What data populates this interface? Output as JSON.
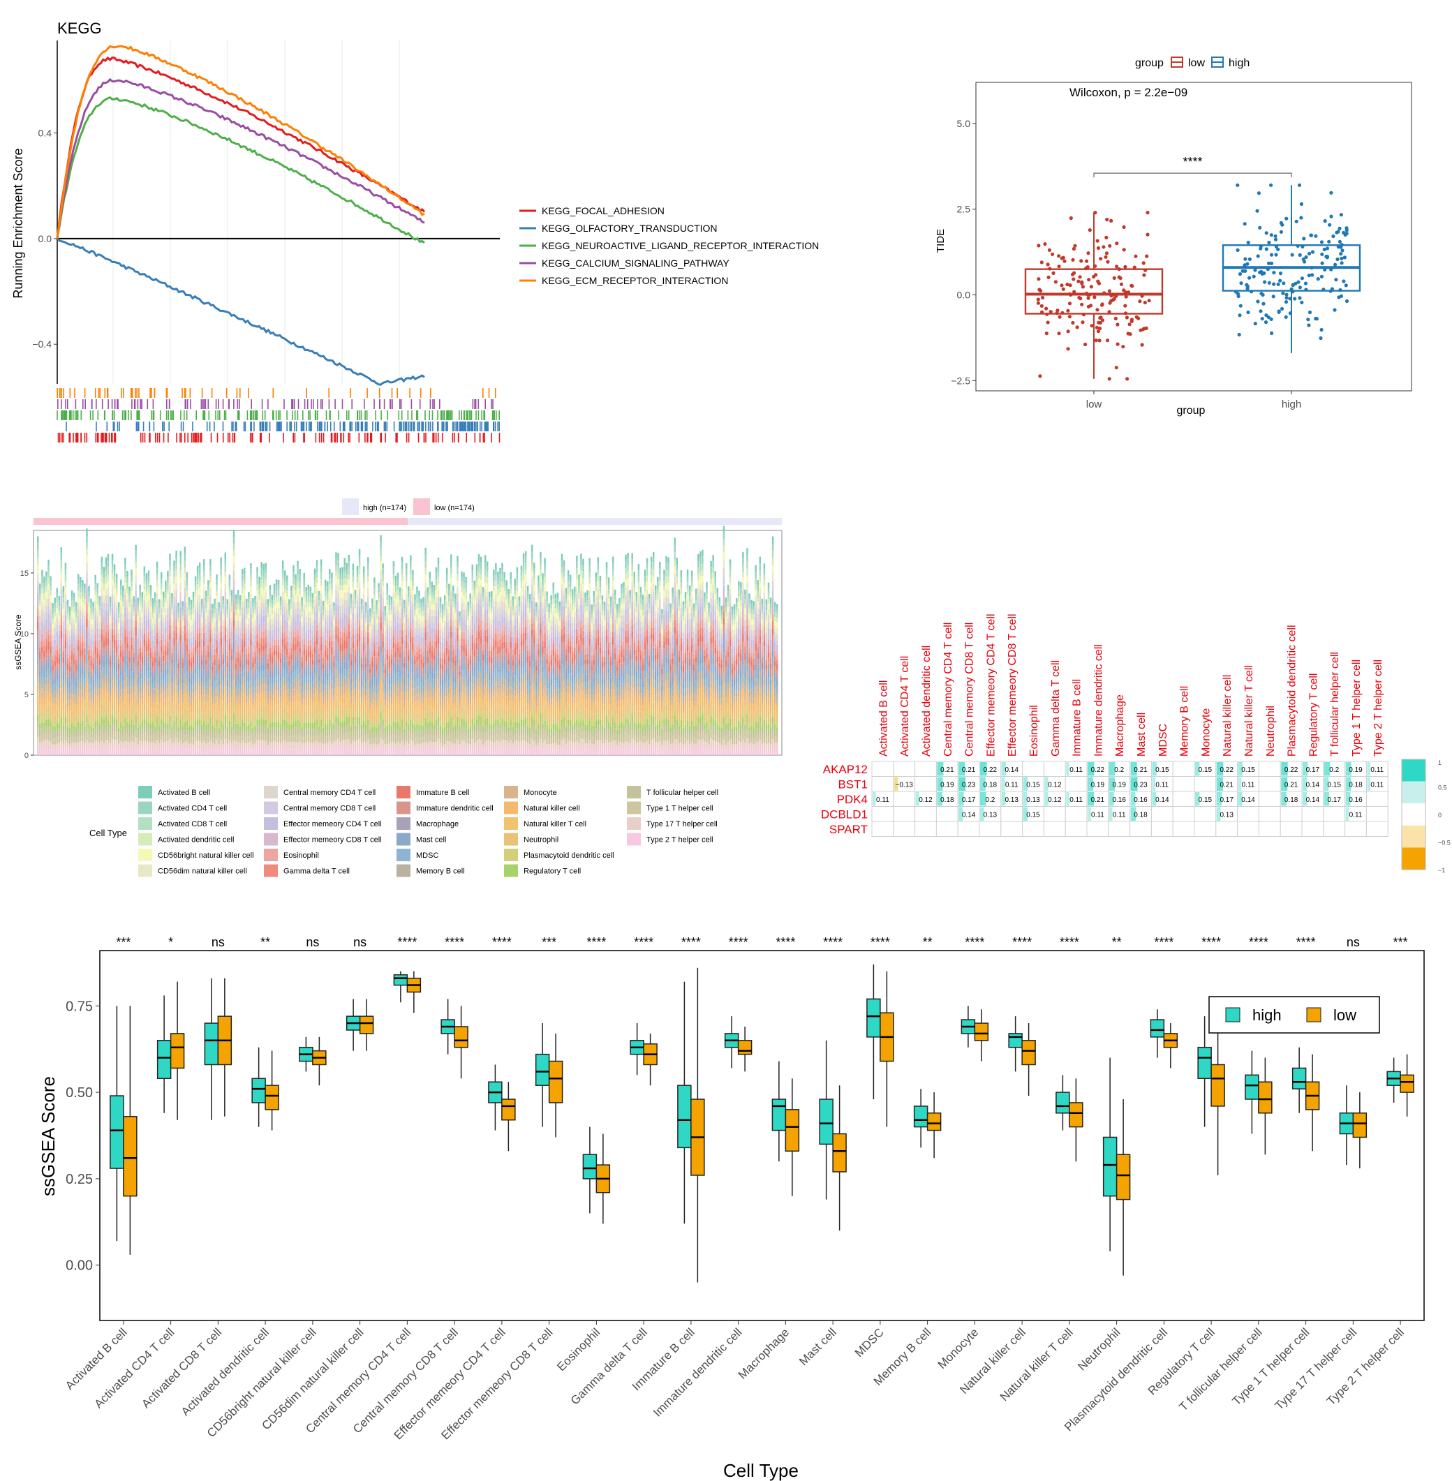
{
  "colors": {
    "kegg": [
      "#e41a1c",
      "#377eb8",
      "#4daf4a",
      "#984ea3",
      "#ff7f00"
    ],
    "low": "#c0392b",
    "high": "#1f78b4",
    "box_high": "#2ed8c4",
    "box_low": "#f4a300",
    "corr_text": "#e8000b"
  },
  "chart_data": [
    {
      "type": "line",
      "title": "KEGG",
      "ylabel": "Running Enrichment Score",
      "ylim": [
        -0.55,
        0.75
      ],
      "yticks": [
        "0.4",
        "0.0",
        "−0.4"
      ],
      "ytick_values": [
        0.4,
        0.0,
        -0.4
      ],
      "series": [
        {
          "name": "KEGG_FOCAL_ADHESION",
          "peak": 0.68,
          "end": 0.1
        },
        {
          "name": "KEGG_OLFACTORY_TRANSDUCTION",
          "peak": -0.55,
          "end": -0.52
        },
        {
          "name": "KEGG_NEUROACTIVE_LIGAND_RECEPTOR_INTERACTION",
          "peak": 0.53,
          "end": -0.02
        },
        {
          "name": "KEGG_CALCIUM_SIGNALING_PATHWAY",
          "peak": 0.6,
          "end": 0.06
        },
        {
          "name": "KEGG_ECM_RECEPTOR_INTERACTION",
          "peak": 0.73,
          "end": 0.09
        }
      ]
    },
    {
      "type": "box",
      "legend_title": "group",
      "legend": [
        "low",
        "high"
      ],
      "annotation": "Wilcoxon, p = 2.2e−09",
      "significance": "****",
      "xlabel": "group",
      "ylabel": "TIDE",
      "categories": [
        "low",
        "high"
      ],
      "ylim": [
        -2.8,
        6.2
      ],
      "yticks": [
        "5.0",
        "2.5",
        "0.0",
        "−2.5"
      ],
      "ytick_values": [
        5.0,
        2.5,
        0.0,
        -2.5
      ],
      "boxes": [
        {
          "group": "low",
          "q1": -0.55,
          "median": 0.02,
          "q3": 0.75,
          "min": -2.45,
          "max": 2.4
        },
        {
          "group": "high",
          "q1": 0.12,
          "median": 0.8,
          "q3": 1.45,
          "min": -1.7,
          "max": 3.2
        }
      ]
    },
    {
      "type": "bar",
      "stacked": true,
      "ylabel": "ssGSEA Score",
      "ylim": [
        0,
        18.5
      ],
      "yticks": [
        "15",
        "10",
        "5",
        "0"
      ],
      "ytick_values": [
        15,
        10,
        5,
        0
      ],
      "group_legend": [
        "high (n=174)",
        "low (n=174)"
      ],
      "legend_title": "Cell Type",
      "cell_types": [
        "Activated B cell",
        "Activated CD4 T cell",
        "Activated CD8 T cell",
        "Activated dendritic cell",
        "CD56bright natural killer cell",
        "CD56dim natural killer cell",
        "Central memory CD4 T cell",
        "Central memory CD8 T cell",
        "Effector memeory CD4 T cell",
        "Effector memeory CD8 T cell",
        "Eosinophil",
        "Gamma delta T cell",
        "Immature  B cell",
        "Immature dendritic cell",
        "Macrophage",
        "Mast cell",
        "MDSC",
        "Memory B cell",
        "Monocyte",
        "Natural killer cell",
        "Natural killer T cell",
        "Neutrophil",
        "Plasmacytoid dendritic cell",
        "Regulatory T cell",
        "T follicular helper cell",
        "Type 1 T helper cell",
        "Type 17 T helper cell",
        "Type 2 T helper cell"
      ],
      "cell_colors": [
        "#7ecdbb",
        "#99d5c1",
        "#b4dfc0",
        "#d4ecb9",
        "#f6f8b5",
        "#e8e8c8",
        "#ded6cc",
        "#d2cbe0",
        "#c5bee0",
        "#d8b8cc",
        "#eca5a0",
        "#f08a7e",
        "#e9776b",
        "#d9948b",
        "#a9a0b9",
        "#8aa8c7",
        "#8db4d0",
        "#b9b2a2",
        "#d8b48d",
        "#f4b96e",
        "#f2c26e",
        "#e8c278",
        "#d2d07a",
        "#a9d16a",
        "#c3c29a",
        "#cfc69e",
        "#e9cfc8",
        "#f7c8df"
      ],
      "mean_total": 14.5
    },
    {
      "type": "heatmap",
      "columns": [
        "Activated B cell",
        "Activated CD4 T cell",
        "Activated dendritic cell",
        "Central memory CD4 T cell",
        "Central memory CD8 T cell",
        "Effector memeory CD4 T cell",
        "Effector memeory CD8 T cell",
        "Eosinophil",
        "Gamma delta T cell",
        "Immature  B cell",
        "Immature dendritic cell",
        "Macrophage",
        "Mast cell",
        "MDSC",
        "Memory B cell",
        "Monocyte",
        "Natural killer cell",
        "Natural killer T cell",
        "Neutrophil",
        "Plasmacytoid dendritic cell",
        "Regulatory T cell",
        "T follicular helper cell",
        "Type 1 T helper cell",
        "Type 2 T helper cell"
      ],
      "rows": [
        "AKAP12",
        "BST1",
        "PDK4",
        "DCBLD1",
        "SPART"
      ],
      "values": [
        [
          null,
          null,
          null,
          0.21,
          0.21,
          0.22,
          0.14,
          null,
          null,
          0.11,
          0.22,
          0.2,
          0.21,
          0.15,
          null,
          0.15,
          0.22,
          0.15,
          null,
          0.22,
          0.17,
          0.2,
          0.19,
          0.11
        ],
        [
          null,
          -0.13,
          null,
          0.19,
          0.23,
          0.18,
          0.11,
          0.15,
          0.12,
          null,
          0.19,
          0.19,
          0.23,
          0.11,
          null,
          null,
          0.21,
          0.11,
          null,
          0.21,
          0.14,
          0.15,
          0.18,
          0.11
        ],
        [
          0.11,
          null,
          0.12,
          0.18,
          0.17,
          0.2,
          0.13,
          0.13,
          0.12,
          0.11,
          0.21,
          0.16,
          0.16,
          0.14,
          null,
          0.15,
          0.17,
          0.14,
          null,
          0.18,
          0.14,
          0.17,
          0.16,
          null
        ],
        [
          null,
          null,
          null,
          null,
          0.14,
          0.13,
          null,
          0.15,
          null,
          null,
          0.11,
          0.11,
          0.18,
          null,
          null,
          null,
          0.13,
          null,
          null,
          null,
          null,
          null,
          0.11,
          null
        ],
        [
          null,
          null,
          null,
          null,
          null,
          null,
          null,
          null,
          null,
          null,
          null,
          null,
          null,
          null,
          null,
          null,
          null,
          null,
          null,
          null,
          null,
          null,
          null,
          null
        ]
      ],
      "value_labels": [
        [
          "",
          "",
          "",
          "0.21",
          "0.21",
          "0.22",
          "0.14",
          "",
          "",
          "0.11",
          "0.22",
          "0.2",
          "0.21",
          "0.15",
          "",
          "0.15",
          "0.22",
          "0.15",
          "",
          "0.22",
          "0.17",
          "0.2",
          "0.19",
          "0.11"
        ],
        [
          "",
          "−0.13",
          "",
          "0.19",
          "0.23",
          "0.18",
          "0.11",
          "0.15",
          "0.12",
          "",
          "0.19",
          "0.19",
          "0.23",
          "0.11",
          "",
          "",
          "0.21",
          "0.11",
          "",
          "0.21",
          "0.14",
          "0.15",
          "0.18",
          "0.11"
        ],
        [
          "0.11",
          "",
          "0.12",
          "0.18",
          "0.17",
          "0.2",
          "0.13",
          "0.13",
          "0.12",
          "0.11",
          "0.21",
          "0.16",
          "0.16",
          "0.14",
          "",
          "0.15",
          "0.17",
          "0.14",
          "",
          "0.18",
          "0.14",
          "0.17",
          "0.16",
          ""
        ],
        [
          "",
          "",
          "",
          "",
          "0.14",
          "0.13",
          "",
          "0.15",
          "",
          "",
          "0.11",
          "0.11",
          "0.18",
          "",
          "",
          "",
          "0.13",
          "",
          "",
          "",
          "",
          "",
          "0.11",
          ""
        ],
        [
          "",
          "",
          "",
          "",
          "",
          "",
          "",
          "",
          "",
          "",
          "",
          "",
          "",
          "",
          "",
          "",
          "",
          "",
          "",
          "",
          "",
          "",
          "",
          ""
        ]
      ],
      "colorbar_ticks": [
        "1",
        "0.5",
        "0",
        "−0.5",
        "−1"
      ],
      "colorbar_colors": [
        "#2ed8c4",
        "#c8efec",
        "#ffffff",
        "#fbe2a9",
        "#f4a300"
      ]
    },
    {
      "type": "box",
      "xlabel": "Cell Type",
      "ylabel": "ssGSEA Score",
      "legend": [
        "high",
        "low"
      ],
      "ylim": [
        -0.16,
        0.91
      ],
      "yticks": [
        "0.75",
        "0.50",
        "0.25",
        "0.00"
      ],
      "ytick_values": [
        0.75,
        0.5,
        0.25,
        0.0
      ],
      "categories": [
        "Activated B cell",
        "Activated CD4 T cell",
        "Activated CD8 T cell",
        "Activated dendritic cell",
        "CD56bright natural killer cell",
        "CD56dim natural killer cell",
        "Central memory CD4 T cell",
        "Central memory CD8 T cell",
        "Effector memeory CD4 T cell",
        "Effector memeory CD8 T cell",
        "Eosinophil",
        "Gamma delta T cell",
        "Immature  B cell",
        "Immature dendritic cell",
        "Macrophage",
        "Mast cell",
        "MDSC",
        "Memory B cell",
        "Monocyte",
        "Natural killer cell",
        "Natural killer T cell",
        "Neutrophil",
        "Plasmacytoid dendritic cell",
        "Regulatory T cell",
        "T follicular helper cell",
        "Type 1 T helper cell",
        "Type 17 T helper cell",
        "Type 2 T helper cell"
      ],
      "significance": [
        "***",
        "*",
        "ns",
        "**",
        "ns",
        "ns",
        "****",
        "****",
        "****",
        "***",
        "****",
        "****",
        "****",
        "****",
        "****",
        "****",
        "****",
        "**",
        "****",
        "****",
        "****",
        "**",
        "****",
        "****",
        "****",
        "****",
        "ns",
        "***"
      ],
      "high": [
        [
          0.07,
          0.28,
          0.39,
          0.49,
          0.75
        ],
        [
          0.44,
          0.54,
          0.6,
          0.65,
          0.78
        ],
        [
          0.42,
          0.58,
          0.65,
          0.7,
          0.83
        ],
        [
          0.4,
          0.47,
          0.51,
          0.54,
          0.63
        ],
        [
          0.56,
          0.59,
          0.61,
          0.63,
          0.66
        ],
        [
          0.62,
          0.68,
          0.7,
          0.72,
          0.77
        ],
        [
          0.76,
          0.81,
          0.83,
          0.84,
          0.85
        ],
        [
          0.61,
          0.67,
          0.69,
          0.71,
          0.77
        ],
        [
          0.39,
          0.47,
          0.5,
          0.53,
          0.58
        ],
        [
          0.4,
          0.52,
          0.56,
          0.61,
          0.7
        ],
        [
          0.15,
          0.25,
          0.28,
          0.32,
          0.4
        ],
        [
          0.55,
          0.61,
          0.63,
          0.65,
          0.7
        ],
        [
          0.12,
          0.34,
          0.42,
          0.52,
          0.82
        ],
        [
          0.57,
          0.63,
          0.65,
          0.67,
          0.72
        ],
        [
          0.3,
          0.39,
          0.46,
          0.48,
          0.59
        ],
        [
          0.19,
          0.35,
          0.41,
          0.48,
          0.65
        ],
        [
          0.48,
          0.66,
          0.72,
          0.77,
          0.87
        ],
        [
          0.34,
          0.4,
          0.42,
          0.46,
          0.51
        ],
        [
          0.63,
          0.67,
          0.69,
          0.71,
          0.75
        ],
        [
          0.56,
          0.63,
          0.66,
          0.67,
          0.72
        ],
        [
          0.39,
          0.44,
          0.46,
          0.5,
          0.55
        ],
        [
          0.04,
          0.2,
          0.29,
          0.37,
          0.6
        ],
        [
          0.6,
          0.66,
          0.68,
          0.71,
          0.74
        ],
        [
          0.4,
          0.54,
          0.6,
          0.63,
          0.72
        ],
        [
          0.38,
          0.48,
          0.52,
          0.55,
          0.62
        ],
        [
          0.44,
          0.51,
          0.53,
          0.57,
          0.63
        ],
        [
          0.29,
          0.38,
          0.41,
          0.44,
          0.52
        ],
        [
          0.47,
          0.52,
          0.54,
          0.56,
          0.6
        ]
      ],
      "low": [
        [
          0.03,
          0.2,
          0.31,
          0.43,
          0.75
        ],
        [
          0.42,
          0.57,
          0.63,
          0.67,
          0.82
        ],
        [
          0.43,
          0.58,
          0.65,
          0.72,
          0.83
        ],
        [
          0.39,
          0.45,
          0.49,
          0.52,
          0.62
        ],
        [
          0.52,
          0.58,
          0.6,
          0.62,
          0.66
        ],
        [
          0.62,
          0.67,
          0.7,
          0.72,
          0.77
        ],
        [
          0.73,
          0.79,
          0.81,
          0.83,
          0.85
        ],
        [
          0.54,
          0.63,
          0.65,
          0.69,
          0.75
        ],
        [
          0.33,
          0.42,
          0.46,
          0.48,
          0.53
        ],
        [
          0.37,
          0.47,
          0.54,
          0.59,
          0.67
        ],
        [
          0.12,
          0.21,
          0.25,
          0.29,
          0.38
        ],
        [
          0.52,
          0.58,
          0.61,
          0.64,
          0.67
        ],
        [
          -0.05,
          0.26,
          0.37,
          0.48,
          0.86
        ],
        [
          0.56,
          0.61,
          0.62,
          0.65,
          0.69
        ],
        [
          0.2,
          0.33,
          0.4,
          0.45,
          0.54
        ],
        [
          0.1,
          0.27,
          0.33,
          0.38,
          0.52
        ],
        [
          0.4,
          0.59,
          0.66,
          0.73,
          0.85
        ],
        [
          0.31,
          0.39,
          0.41,
          0.44,
          0.5
        ],
        [
          0.59,
          0.65,
          0.67,
          0.7,
          0.74
        ],
        [
          0.49,
          0.58,
          0.62,
          0.65,
          0.7
        ],
        [
          0.3,
          0.4,
          0.44,
          0.47,
          0.54
        ],
        [
          -0.03,
          0.19,
          0.26,
          0.32,
          0.48
        ],
        [
          0.57,
          0.63,
          0.65,
          0.67,
          0.7
        ],
        [
          0.26,
          0.46,
          0.54,
          0.58,
          0.68
        ],
        [
          0.32,
          0.44,
          0.48,
          0.53,
          0.6
        ],
        [
          0.33,
          0.45,
          0.49,
          0.53,
          0.61
        ],
        [
          0.28,
          0.37,
          0.41,
          0.44,
          0.5
        ],
        [
          0.43,
          0.5,
          0.53,
          0.55,
          0.61
        ]
      ]
    }
  ]
}
